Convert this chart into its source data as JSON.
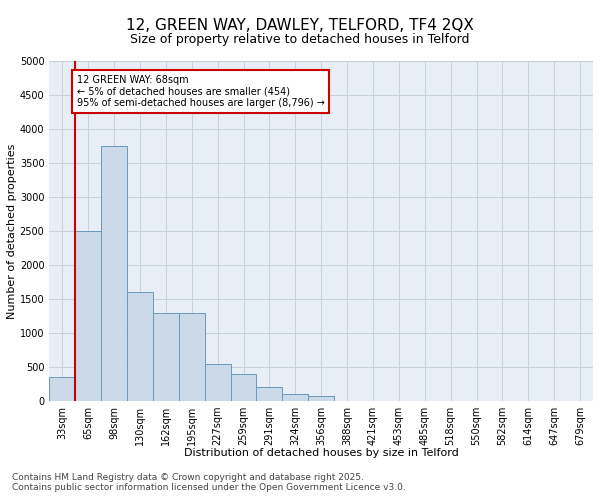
{
  "title_line1": "12, GREEN WAY, DAWLEY, TELFORD, TF4 2QX",
  "title_line2": "Size of property relative to detached houses in Telford",
  "xlabel": "Distribution of detached houses by size in Telford",
  "ylabel": "Number of detached properties",
  "categories": [
    "33sqm",
    "65sqm",
    "98sqm",
    "130sqm",
    "162sqm",
    "195sqm",
    "227sqm",
    "259sqm",
    "291sqm",
    "324sqm",
    "356sqm",
    "388sqm",
    "421sqm",
    "453sqm",
    "485sqm",
    "518sqm",
    "550sqm",
    "582sqm",
    "614sqm",
    "647sqm",
    "679sqm"
  ],
  "values": [
    350,
    2500,
    3750,
    1600,
    1300,
    1300,
    550,
    400,
    200,
    100,
    70,
    5,
    0,
    0,
    0,
    0,
    0,
    0,
    0,
    0,
    0
  ],
  "bar_color": "#ccd9e8",
  "bar_edge_color": "#6699bb",
  "vertical_line_color": "#cc0000",
  "annotation_text": "12 GREEN WAY: 68sqm\n← 5% of detached houses are smaller (454)\n95% of semi-detached houses are larger (8,796) →",
  "annotation_box_color": "#cc0000",
  "ylim": [
    0,
    5000
  ],
  "yticks": [
    0,
    500,
    1000,
    1500,
    2000,
    2500,
    3000,
    3500,
    4000,
    4500,
    5000
  ],
  "footer_line1": "Contains HM Land Registry data © Crown copyright and database right 2025.",
  "footer_line2": "Contains public sector information licensed under the Open Government Licence v3.0.",
  "background_color": "#ffffff",
  "plot_bg_color": "#e8eef5",
  "grid_color": "#c8d0dc",
  "title_fontsize": 11,
  "subtitle_fontsize": 9,
  "axis_label_fontsize": 8,
  "tick_fontsize": 7,
  "annot_fontsize": 7,
  "footer_fontsize": 6.5
}
